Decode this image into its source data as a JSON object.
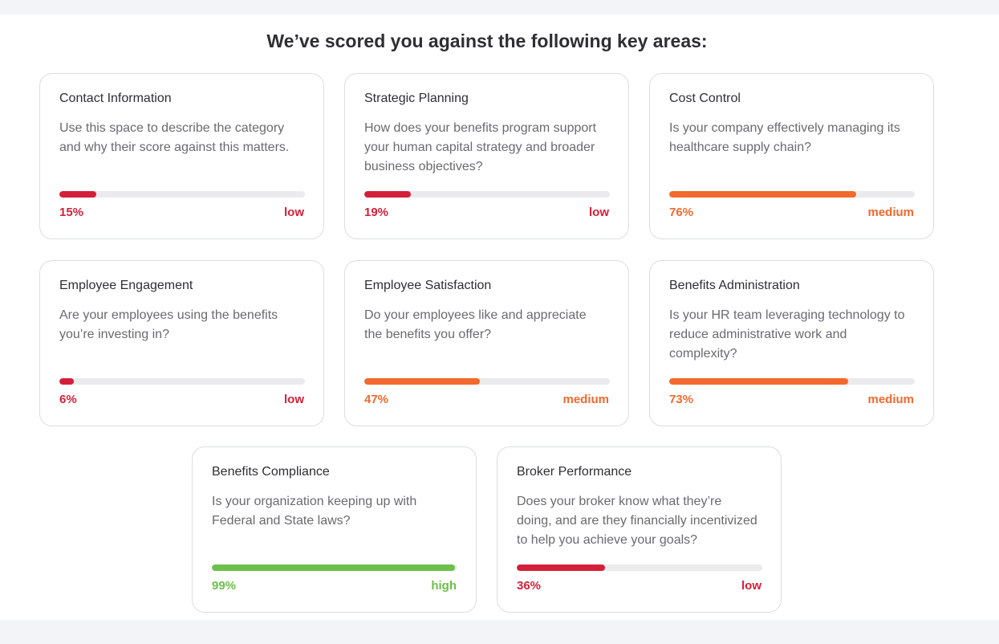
{
  "heading": "We’ve scored you against the following key areas:",
  "colors": {
    "low": "#d41f3a",
    "medium": "#f2692d",
    "high": "#6cc04a"
  },
  "cards": [
    {
      "title": "Contact Information",
      "description": "Use this space to describe the category and why their score against this matters.",
      "percent_label": "15%",
      "score": 15,
      "level": "low"
    },
    {
      "title": "Strategic Planning",
      "description": "How does your benefits program support your human capital strategy and broader business objectives?",
      "percent_label": "19%",
      "score": 19,
      "level": "low"
    },
    {
      "title": "Cost Control",
      "description": "Is your company effectively managing its healthcare supply chain?",
      "percent_label": "76%",
      "score": 76,
      "level": "medium"
    },
    {
      "title": "Employee Engagement",
      "description": "Are your employees using the benefits you’re investing in?",
      "percent_label": "6%",
      "score": 6,
      "level": "low"
    },
    {
      "title": "Employee Satisfaction",
      "description": "Do your employees like and appreciate the benefits you offer?",
      "percent_label": "47%",
      "score": 47,
      "level": "medium"
    },
    {
      "title": "Benefits Administration",
      "description": "Is your HR team leveraging technology to reduce administrative work and complexity?",
      "percent_label": "73%",
      "score": 73,
      "level": "medium"
    },
    {
      "title": "Benefits Compliance",
      "description": "Is your organization keeping up with Federal and State laws?",
      "percent_label": "99%",
      "score": 99,
      "level": "high"
    },
    {
      "title": "Broker Performance",
      "description": "Does your broker know what they’re doing, and are they financially incentivized to help you achieve your goals?",
      "percent_label": "36%",
      "score": 36,
      "level": "low"
    }
  ]
}
